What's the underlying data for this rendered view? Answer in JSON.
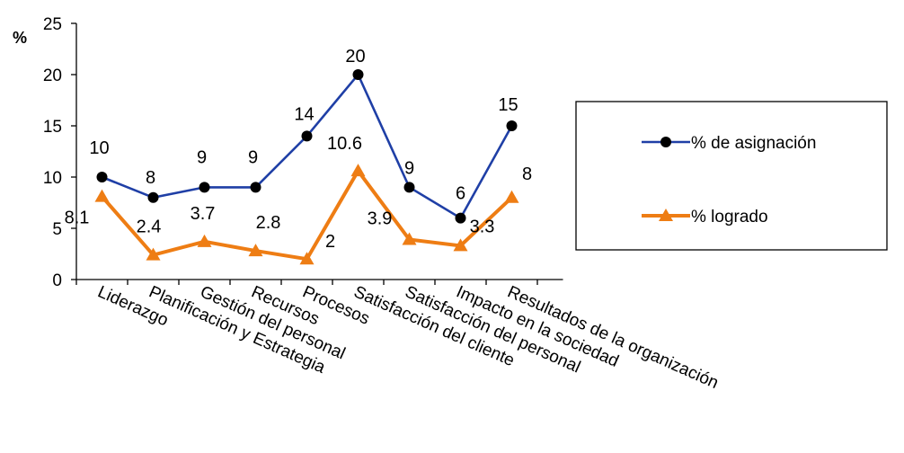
{
  "chart_data": {
    "type": "line",
    "ylabel": "%",
    "ylim": [
      0,
      25
    ],
    "yticks": [
      0,
      5,
      10,
      15,
      20,
      25
    ],
    "grid": false,
    "legend_position": "right",
    "categories": [
      "Liderazgo",
      "Planificación y Estrategia",
      "Gestión del personal",
      "Recursos",
      "Procesos",
      "Satisfacción del cliente",
      "Satisfacción del personal",
      "Impacto en la sociedad",
      "Resultados de la organización"
    ],
    "series": [
      {
        "name": "% de asignación",
        "color": "#1f3fa6",
        "marker": "circle",
        "values": [
          10,
          8,
          9,
          9,
          14,
          20,
          9,
          6,
          15
        ],
        "labels": [
          "10",
          "8",
          "9",
          "9",
          "14",
          "20",
          "9",
          "6",
          "15"
        ]
      },
      {
        "name": "% logrado",
        "color": "#ee7d14",
        "marker": "triangle",
        "values": [
          8.1,
          2.4,
          3.7,
          2.8,
          2,
          10.6,
          3.9,
          3.3,
          8
        ],
        "labels": [
          "8.1",
          "2.4",
          "3.7",
          "2.8",
          "2",
          "10.6",
          "3.9",
          "3.3",
          "8"
        ]
      }
    ]
  }
}
